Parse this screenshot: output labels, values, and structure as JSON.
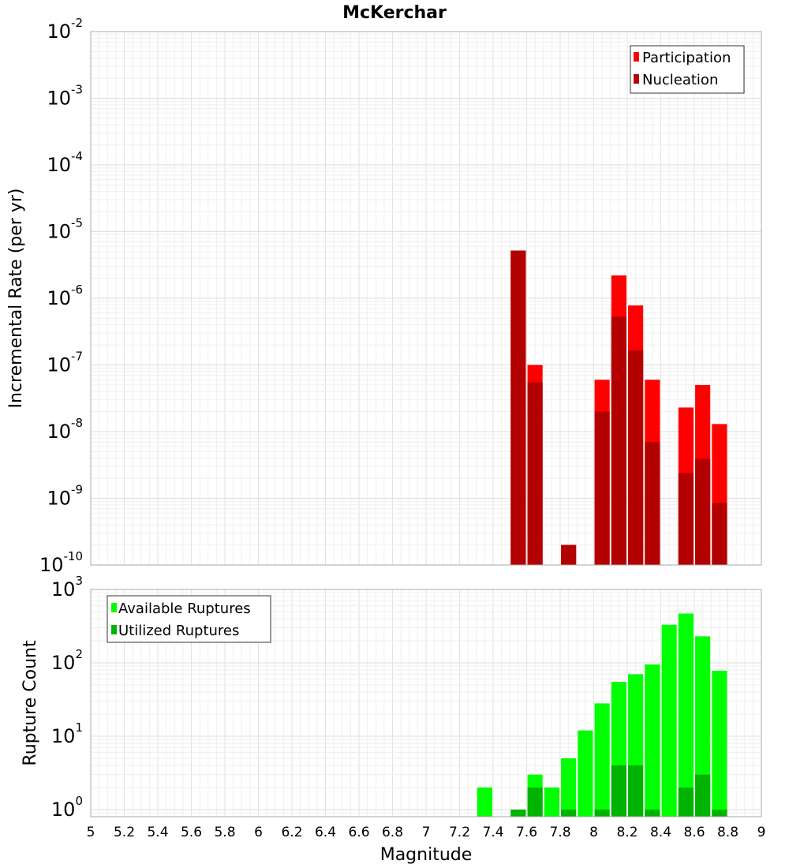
{
  "title": "McKerchar",
  "xlabel": "Magnitude",
  "x_ticks": [
    "5",
    "5.2",
    "5.4",
    "5.6",
    "5.8",
    "6",
    "6.2",
    "6.4",
    "6.6",
    "6.8",
    "7",
    "7.2",
    "7.4",
    "7.6",
    "7.8",
    "8",
    "8.2",
    "8.4",
    "8.6",
    "8.8",
    "9"
  ],
  "chart_data": [
    {
      "type": "bar",
      "ylabel": "Incremental Rate (per yr)",
      "xlim": [
        5,
        9
      ],
      "ylim": [
        1e-10,
        0.01
      ],
      "yscale": "log",
      "y_ticks": [
        {
          "base": "10",
          "exp": "-2"
        },
        {
          "base": "10",
          "exp": "-3"
        },
        {
          "base": "10",
          "exp": "-4"
        },
        {
          "base": "10",
          "exp": "-5"
        },
        {
          "base": "10",
          "exp": "-6"
        },
        {
          "base": "10",
          "exp": "-7"
        },
        {
          "base": "10",
          "exp": "-8"
        },
        {
          "base": "10",
          "exp": "-9"
        },
        {
          "base": "10",
          "exp": "-10"
        }
      ],
      "grid": true,
      "legend_position": "top-right",
      "bar_width": 0.09,
      "x": [
        7.55,
        7.65,
        7.85,
        8.05,
        8.15,
        8.25,
        8.35,
        8.55,
        8.65,
        8.75
      ],
      "series": [
        {
          "name": "Participation",
          "color": "#ff0000",
          "values": [
            5.2e-06,
            1e-07,
            2e-10,
            6e-08,
            2.2e-06,
            7.8e-07,
            6e-08,
            2.3e-08,
            5e-08,
            1.3e-08
          ]
        },
        {
          "name": "Nucleation",
          "color": "#b30000",
          "values": [
            5.2e-06,
            5.5e-08,
            2e-10,
            2e-08,
            5.3e-07,
            1.65e-07,
            7e-09,
            2.4e-09,
            3.9e-09,
            8.5e-10
          ]
        }
      ]
    },
    {
      "type": "bar",
      "ylabel": "Rupture Count",
      "xlim": [
        5,
        9
      ],
      "ylim": [
        0.8,
        1000
      ],
      "yscale": "log",
      "y_ticks": [
        {
          "base": "10",
          "exp": "3"
        },
        {
          "base": "10",
          "exp": "2"
        },
        {
          "base": "10",
          "exp": "1"
        },
        {
          "base": "10",
          "exp": "0"
        }
      ],
      "grid": true,
      "legend_position": "top-left",
      "bar_width": 0.09,
      "x": [
        7.35,
        7.55,
        7.65,
        7.75,
        7.85,
        7.95,
        8.05,
        8.15,
        8.25,
        8.35,
        8.45,
        8.55,
        8.65,
        8.75
      ],
      "series": [
        {
          "name": "Available Ruptures",
          "color": "#00ff00",
          "values": [
            2,
            1,
            3,
            2,
            5,
            12,
            28,
            55,
            70,
            95,
            330,
            470,
            230,
            78
          ]
        },
        {
          "name": "Utilized Ruptures",
          "color": "#00b300",
          "values": [
            0,
            1,
            2,
            0,
            1,
            0,
            1,
            4,
            4,
            1,
            0,
            2,
            3,
            1
          ]
        }
      ]
    }
  ]
}
